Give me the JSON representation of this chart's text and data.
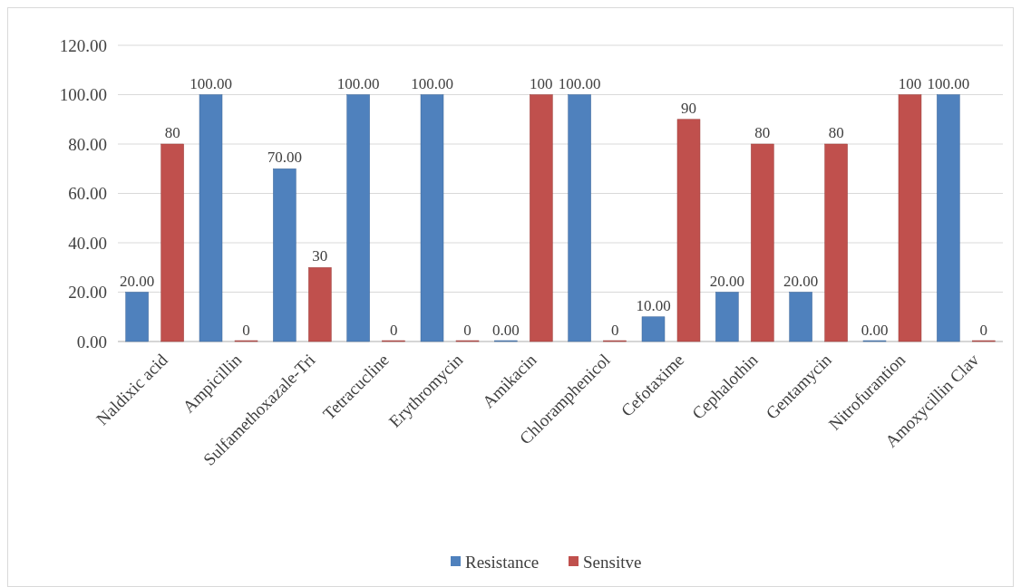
{
  "chart_data": {
    "type": "bar",
    "categories": [
      "Naldixic acid",
      "Ampicillin",
      "Sulfamethoxazale-Tri",
      "Tetracucline",
      "Erythromycin",
      "Amikacin",
      "Chloramphenicol",
      "Cefotaxime",
      "Cephalothin",
      "Gentamycin",
      "Nitrofurantion",
      "Amoxycillin Clav"
    ],
    "series": [
      {
        "name": "Resistance",
        "color": "#4f81bd",
        "values": [
          20,
          100,
          70,
          100,
          100,
          0,
          100,
          10,
          20,
          20,
          0,
          100
        ],
        "value_labels": [
          "20.00",
          "100.00",
          "70.00",
          "100.00",
          "100.00",
          "0.00",
          "100.00",
          "10.00",
          "20.00",
          "20.00",
          "0.00",
          "100.00"
        ]
      },
      {
        "name": "Sensitve",
        "color": "#c0504d",
        "values": [
          80,
          0,
          30,
          0,
          0,
          100,
          0,
          90,
          80,
          80,
          100,
          0
        ],
        "value_labels": [
          "80",
          "0",
          "30",
          "0",
          "0",
          "100",
          "0",
          "90",
          "80",
          "80",
          "100",
          "0"
        ]
      }
    ],
    "ylim": [
      0,
      120
    ],
    "yticks": [
      {
        "value": 0,
        "label": "0.00"
      },
      {
        "value": 20,
        "label": "20.00"
      },
      {
        "value": 40,
        "label": "40.00"
      },
      {
        "value": 60,
        "label": "60.00"
      },
      {
        "value": 80,
        "label": "80.00"
      },
      {
        "value": 100,
        "label": "100.00"
      },
      {
        "value": 120,
        "label": "120.00"
      }
    ],
    "grid": "y",
    "legend": "bottom"
  }
}
